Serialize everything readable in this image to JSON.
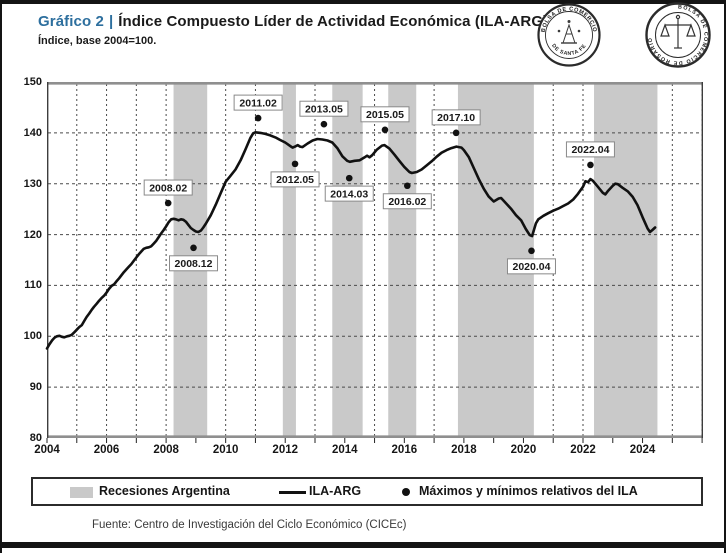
{
  "header": {
    "chart_label": "Gráfico 2",
    "separator": "|",
    "title": "Índice Compuesto Líder de Actividad Económica (ILA-ARG).",
    "subtitle": "Índice, base 2004=100."
  },
  "logos": {
    "santa_fe_top": "BOLSA DE COMERCIO",
    "santa_fe_bottom": "DE SANTA FE",
    "rosario_around": "BOLSA DE COMERCIO DE ROSARIO"
  },
  "legend": {
    "recessions_label": "Recesiones Argentina",
    "line_label": "ILA-ARG",
    "markers_label": "Máximos y mínimos relativos del ILA"
  },
  "source": "Fuente: Centro de Investigación del Ciclo Económico (CICEc)",
  "chart_data": {
    "type": "line",
    "title": "Índice Compuesto Líder de Actividad Económica (ILA-ARG)",
    "ylabel": "Índice, base 2004=100",
    "xlim": [
      2004,
      2026.03
    ],
    "ylim": [
      80,
      150
    ],
    "y_ticks": [
      80,
      90,
      100,
      110,
      120,
      130,
      140,
      150
    ],
    "x_tick_labels": [
      2004,
      2006,
      2008,
      2010,
      2012,
      2014,
      2016,
      2018,
      2020,
      2022,
      2024
    ],
    "grid": "dashed",
    "legend_position": "bottom",
    "colors": {
      "band": "#c9c9c9",
      "grid": "#4a4a4a",
      "line": "#111111",
      "axis_gray": "#8f8f8f",
      "border_dark": "#3d3d3d",
      "annotation_border": "#8a8a8a"
    },
    "recession_bands": [
      [
        2008.25,
        2009.38
      ],
      [
        2011.92,
        2012.36
      ],
      [
        2013.58,
        2014.6
      ],
      [
        2015.46,
        2016.4
      ],
      [
        2017.8,
        2020.35
      ],
      [
        2022.37,
        2024.5
      ]
    ],
    "markers": [
      {
        "label": "2008.02",
        "x": 2008.07,
        "y": 126.2,
        "label_pos": "above"
      },
      {
        "label": "2008.12",
        "x": 2008.92,
        "y": 117.4,
        "label_pos": "below"
      },
      {
        "label": "2011.02",
        "x": 2011.09,
        "y": 142.9,
        "label_pos": "above"
      },
      {
        "label": "2012.05",
        "x": 2012.33,
        "y": 133.9,
        "label_pos": "below"
      },
      {
        "label": "2013.05",
        "x": 2013.3,
        "y": 141.7,
        "label_pos": "above"
      },
      {
        "label": "2014.03",
        "x": 2014.15,
        "y": 131.1,
        "label_pos": "below"
      },
      {
        "label": "2015.05",
        "x": 2015.35,
        "y": 140.6,
        "label_pos": "above"
      },
      {
        "label": "2016.02",
        "x": 2016.1,
        "y": 129.6,
        "label_pos": "below"
      },
      {
        "label": "2017.10",
        "x": 2017.74,
        "y": 140.0,
        "label_pos": "above"
      },
      {
        "label": "2020.04",
        "x": 2020.27,
        "y": 116.8,
        "label_pos": "below"
      },
      {
        "label": "2022.04",
        "x": 2022.25,
        "y": 133.7,
        "label_pos": "above"
      }
    ],
    "series": [
      {
        "name": "ILA-ARG",
        "points": [
          [
            2004.0,
            97.6
          ],
          [
            2004.08,
            98.4
          ],
          [
            2004.17,
            99.2
          ],
          [
            2004.25,
            99.7
          ],
          [
            2004.33,
            100.0
          ],
          [
            2004.42,
            100.1
          ],
          [
            2004.5,
            99.9
          ],
          [
            2004.58,
            99.8
          ],
          [
            2004.67,
            100.0
          ],
          [
            2004.75,
            100.1
          ],
          [
            2004.83,
            100.3
          ],
          [
            2004.92,
            100.8
          ],
          [
            2005.0,
            101.3
          ],
          [
            2005.08,
            101.8
          ],
          [
            2005.17,
            102.2
          ],
          [
            2005.25,
            103.0
          ],
          [
            2005.33,
            103.8
          ],
          [
            2005.42,
            104.5
          ],
          [
            2005.5,
            105.2
          ],
          [
            2005.58,
            105.8
          ],
          [
            2005.67,
            106.4
          ],
          [
            2005.75,
            107.0
          ],
          [
            2005.83,
            107.5
          ],
          [
            2005.92,
            108.0
          ],
          [
            2006.0,
            108.6
          ],
          [
            2006.08,
            109.3
          ],
          [
            2006.17,
            109.9
          ],
          [
            2006.25,
            110.2
          ],
          [
            2006.33,
            110.8
          ],
          [
            2006.42,
            111.4
          ],
          [
            2006.5,
            112.0
          ],
          [
            2006.58,
            112.6
          ],
          [
            2006.67,
            113.2
          ],
          [
            2006.75,
            113.7
          ],
          [
            2006.83,
            114.2
          ],
          [
            2006.92,
            114.9
          ],
          [
            2007.0,
            115.5
          ],
          [
            2007.08,
            116.1
          ],
          [
            2007.17,
            116.7
          ],
          [
            2007.25,
            117.2
          ],
          [
            2007.33,
            117.4
          ],
          [
            2007.42,
            117.5
          ],
          [
            2007.5,
            117.7
          ],
          [
            2007.58,
            118.2
          ],
          [
            2007.67,
            118.8
          ],
          [
            2007.75,
            119.5
          ],
          [
            2007.83,
            120.2
          ],
          [
            2007.92,
            120.9
          ],
          [
            2008.0,
            121.6
          ],
          [
            2008.08,
            122.4
          ],
          [
            2008.17,
            123.0
          ],
          [
            2008.25,
            123.1
          ],
          [
            2008.33,
            123.0
          ],
          [
            2008.42,
            122.8
          ],
          [
            2008.5,
            123.0
          ],
          [
            2008.58,
            122.9
          ],
          [
            2008.67,
            122.5
          ],
          [
            2008.75,
            121.9
          ],
          [
            2008.83,
            121.3
          ],
          [
            2008.92,
            120.9
          ],
          [
            2009.0,
            120.6
          ],
          [
            2009.08,
            120.5
          ],
          [
            2009.17,
            120.8
          ],
          [
            2009.25,
            121.4
          ],
          [
            2009.33,
            122.1
          ],
          [
            2009.5,
            123.8
          ],
          [
            2009.67,
            125.9
          ],
          [
            2009.83,
            128.1
          ],
          [
            2010.0,
            130.4
          ],
          [
            2010.17,
            131.6
          ],
          [
            2010.33,
            132.8
          ],
          [
            2010.5,
            134.6
          ],
          [
            2010.67,
            136.8
          ],
          [
            2010.83,
            139.0
          ],
          [
            2010.92,
            139.9
          ],
          [
            2011.0,
            140.1
          ],
          [
            2011.17,
            140.0
          ],
          [
            2011.33,
            139.8
          ],
          [
            2011.5,
            139.5
          ],
          [
            2011.67,
            139.1
          ],
          [
            2011.83,
            138.6
          ],
          [
            2012.0,
            138.1
          ],
          [
            2012.17,
            137.4
          ],
          [
            2012.25,
            137.1
          ],
          [
            2012.33,
            137.3
          ],
          [
            2012.42,
            137.6
          ],
          [
            2012.5,
            137.3
          ],
          [
            2012.58,
            137.2
          ],
          [
            2012.75,
            137.9
          ],
          [
            2012.92,
            138.5
          ],
          [
            2013.08,
            138.8
          ],
          [
            2013.25,
            138.7
          ],
          [
            2013.42,
            138.5
          ],
          [
            2013.58,
            138.1
          ],
          [
            2013.75,
            137.0
          ],
          [
            2013.92,
            135.4
          ],
          [
            2014.08,
            134.5
          ],
          [
            2014.17,
            134.3
          ],
          [
            2014.33,
            134.5
          ],
          [
            2014.5,
            134.6
          ],
          [
            2014.67,
            135.2
          ],
          [
            2014.75,
            135.5
          ],
          [
            2014.83,
            135.2
          ],
          [
            2014.92,
            135.6
          ],
          [
            2015.08,
            136.7
          ],
          [
            2015.25,
            137.5
          ],
          [
            2015.33,
            137.6
          ],
          [
            2015.5,
            136.9
          ],
          [
            2015.67,
            135.7
          ],
          [
            2015.83,
            134.5
          ],
          [
            2016.0,
            133.3
          ],
          [
            2016.17,
            132.3
          ],
          [
            2016.25,
            132.1
          ],
          [
            2016.42,
            132.3
          ],
          [
            2016.58,
            132.8
          ],
          [
            2016.75,
            133.6
          ],
          [
            2016.92,
            134.4
          ],
          [
            2017.08,
            135.3
          ],
          [
            2017.25,
            136.1
          ],
          [
            2017.42,
            136.6
          ],
          [
            2017.58,
            137.0
          ],
          [
            2017.75,
            137.3
          ],
          [
            2017.92,
            137.1
          ],
          [
            2018.0,
            136.6
          ],
          [
            2018.17,
            135.2
          ],
          [
            2018.33,
            133.1
          ],
          [
            2018.5,
            130.9
          ],
          [
            2018.67,
            129.0
          ],
          [
            2018.83,
            127.5
          ],
          [
            2019.0,
            126.5
          ],
          [
            2019.17,
            127.1
          ],
          [
            2019.25,
            127.2
          ],
          [
            2019.42,
            126.1
          ],
          [
            2019.58,
            125.1
          ],
          [
            2019.75,
            123.8
          ],
          [
            2019.92,
            122.8
          ],
          [
            2020.08,
            121.1
          ],
          [
            2020.21,
            119.9
          ],
          [
            2020.29,
            119.7
          ],
          [
            2020.42,
            122.2
          ],
          [
            2020.5,
            123.0
          ],
          [
            2020.67,
            123.7
          ],
          [
            2020.83,
            124.2
          ],
          [
            2021.0,
            124.7
          ],
          [
            2021.17,
            125.1
          ],
          [
            2021.33,
            125.6
          ],
          [
            2021.5,
            126.1
          ],
          [
            2021.67,
            126.9
          ],
          [
            2021.83,
            128.0
          ],
          [
            2022.0,
            129.4
          ],
          [
            2022.08,
            130.5
          ],
          [
            2022.17,
            130.3
          ],
          [
            2022.25,
            130.9
          ],
          [
            2022.33,
            130.6
          ],
          [
            2022.5,
            129.4
          ],
          [
            2022.67,
            128.2
          ],
          [
            2022.75,
            127.9
          ],
          [
            2022.83,
            128.5
          ],
          [
            2023.0,
            129.6
          ],
          [
            2023.08,
            130.0
          ],
          [
            2023.17,
            129.9
          ],
          [
            2023.33,
            129.2
          ],
          [
            2023.5,
            128.5
          ],
          [
            2023.67,
            127.4
          ],
          [
            2023.83,
            125.8
          ],
          [
            2024.0,
            123.4
          ],
          [
            2024.17,
            121.2
          ],
          [
            2024.25,
            120.5
          ],
          [
            2024.33,
            120.9
          ],
          [
            2024.42,
            121.4
          ]
        ]
      }
    ]
  }
}
